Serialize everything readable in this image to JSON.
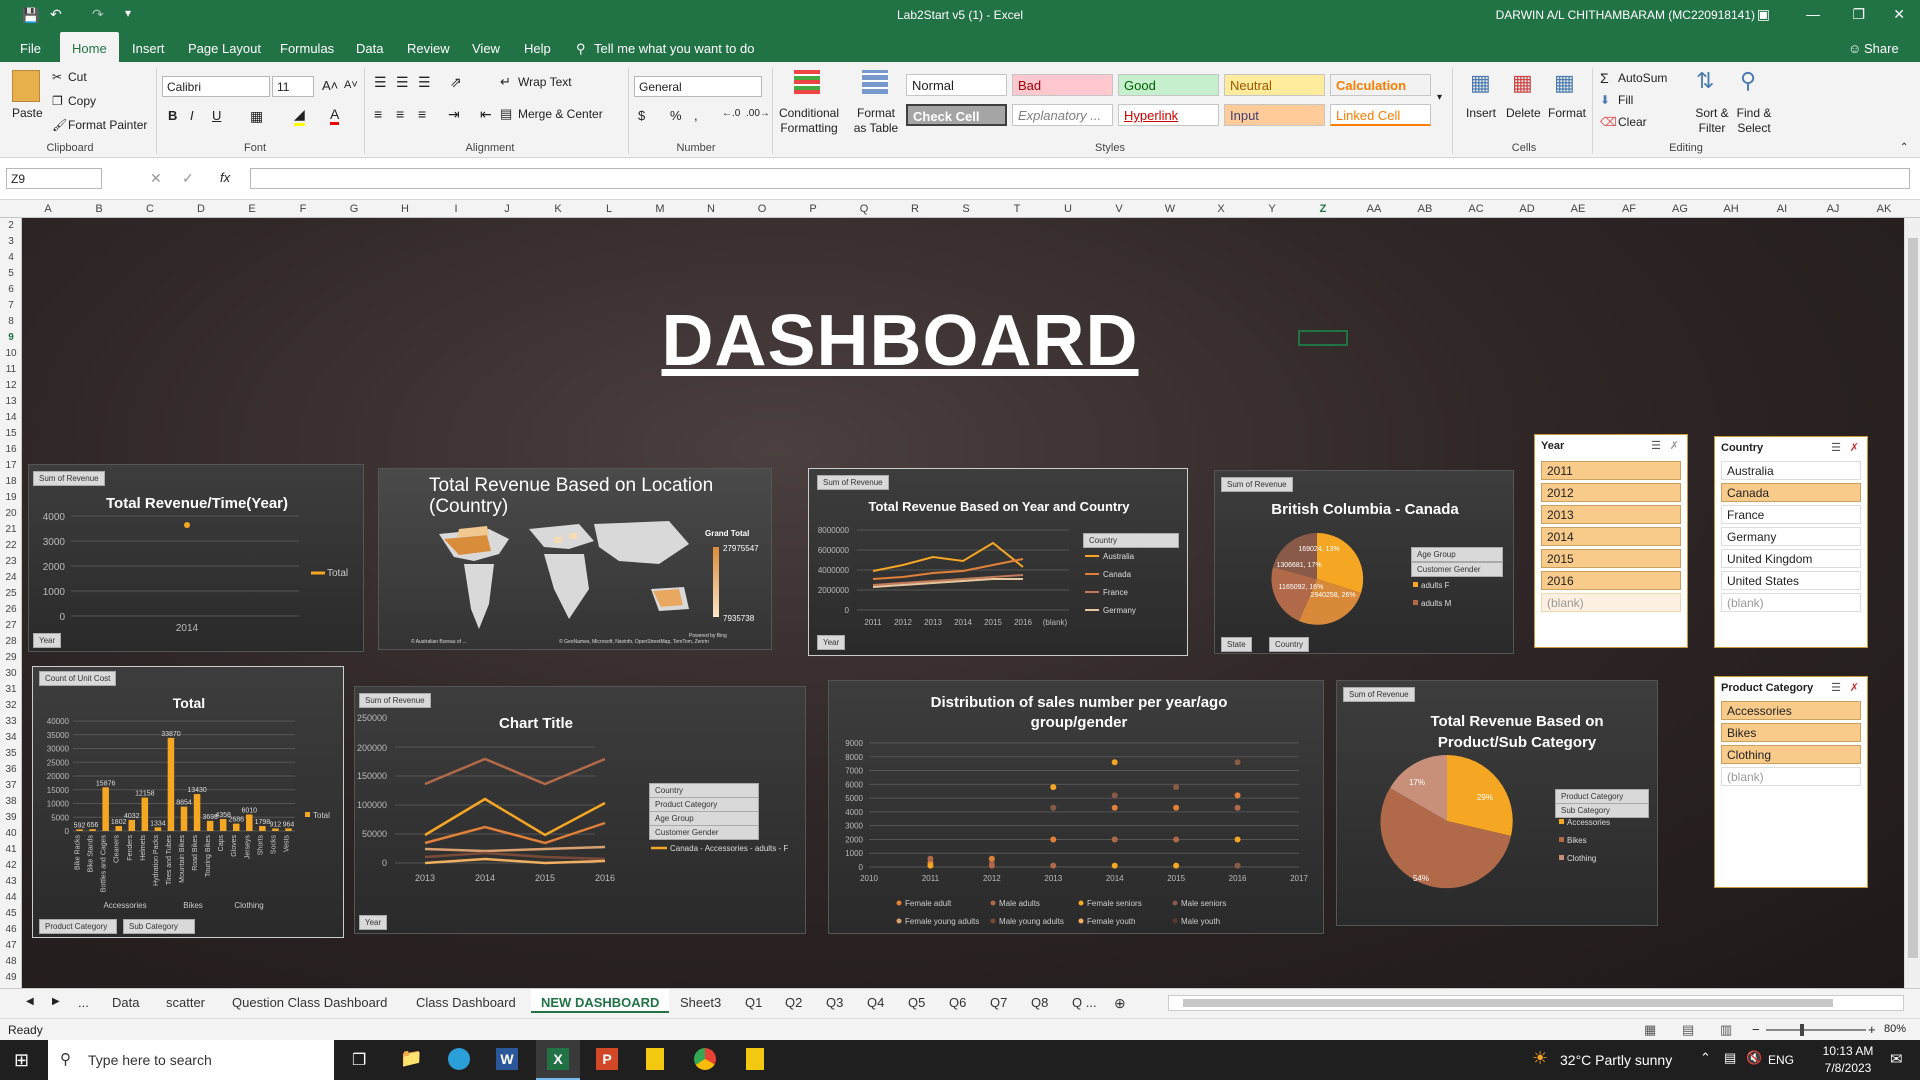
{
  "window": {
    "title": "Lab2Start v5 (1)  -  Excel",
    "user": "DARWIN A/L CHITHAMBARAM (MC220918141)"
  },
  "menu": [
    "File",
    "Home",
    "Insert",
    "Page Layout",
    "Formulas",
    "Data",
    "Review",
    "View",
    "Help"
  ],
  "tell_me": "Tell me what you want to do",
  "share": "Share",
  "ribbon": {
    "clipboard": {
      "paste": "Paste",
      "cut": "Cut",
      "copy": "Copy",
      "format_painter": "Format Painter",
      "label": "Clipboard"
    },
    "font": {
      "name": "Calibri",
      "size": "11",
      "label": "Font"
    },
    "alignment": {
      "wrap": "Wrap Text",
      "merge": "Merge & Center",
      "label": "Alignment"
    },
    "number": {
      "format": "General",
      "label": "Number"
    },
    "styles": {
      "cond": "Conditional Formatting",
      "table": "Format as Table",
      "label": "Styles",
      "cells": [
        "Normal",
        "Bad",
        "Good",
        "Neutral",
        "Calculation",
        "Check Cell",
        "Explanatory ...",
        "Hyperlink",
        "Input",
        "Linked Cell"
      ]
    },
    "cells": {
      "insert": "Insert",
      "delete": "Delete",
      "format": "Format",
      "label": "Cells"
    },
    "editing": {
      "autosum": "AutoSum",
      "fill": "Fill",
      "clear": "Clear",
      "sort": "Sort & Filter",
      "find": "Find & Select",
      "label": "Editing"
    }
  },
  "name_box": "Z9",
  "columns": [
    "A",
    "B",
    "C",
    "D",
    "E",
    "F",
    "G",
    "H",
    "I",
    "J",
    "K",
    "L",
    "M",
    "N",
    "O",
    "P",
    "Q",
    "R",
    "S",
    "T",
    "U",
    "V",
    "W",
    "X",
    "Y",
    "Z",
    "AA",
    "AB",
    "AC",
    "AD",
    "AE",
    "AF",
    "AG",
    "AH",
    "AI",
    "AJ",
    "AK"
  ],
  "rows": [
    "2",
    "3",
    "4",
    "5",
    "6",
    "7",
    "8",
    "9",
    "10",
    "11",
    "12",
    "13",
    "14",
    "15",
    "16",
    "17",
    "18",
    "19",
    "20",
    "21",
    "22",
    "23",
    "24",
    "25",
    "26",
    "27",
    "28",
    "29",
    "30",
    "31",
    "32",
    "33",
    "34",
    "35",
    "36",
    "37",
    "38",
    "39",
    "40",
    "41",
    "42",
    "43",
    "44",
    "45",
    "46",
    "47",
    "48",
    "49"
  ],
  "dashboard_title": "DASHBOARD",
  "charts": {
    "c1": {
      "pill": "Sum of Revenue",
      "title": "Total Revenue/Time(Year)",
      "yticks": [
        "4000",
        "3000",
        "2000",
        "1000",
        "0"
      ],
      "x": "2014",
      "legend": "Total",
      "filter": "Year"
    },
    "c2": {
      "title": "Total  Revenue Based on Location (Country)",
      "grand": "Grand Total",
      "max": "27975547",
      "min": "7935738",
      "credit1": "© Australian Bureau of ...",
      "credit2": "Powered by Bing",
      "credit3": "© GeoNames, Microsoft, Navinfo, OpenStreetMap, TomTom, Zenrin"
    },
    "c3": {
      "pill": "Sum of Revenue",
      "title": "Total Revenue Based on Year  and Country",
      "yticks": [
        "8000000",
        "6000000",
        "4000000",
        "2000000",
        "0"
      ],
      "xticks": [
        "2011",
        "2012",
        "2013",
        "2014",
        "2015",
        "2016",
        "(blank)"
      ],
      "legend_head": "Country",
      "legend": [
        "Australia",
        "Canada",
        "France",
        "Germany"
      ],
      "filter": "Year"
    },
    "c4": {
      "pill": "Sum of Revenue",
      "title": "British Columbia - Canada",
      "f1": "Age Group",
      "f2": "Customer Gender",
      "legend": [
        "adults F",
        "adults M"
      ],
      "filters": [
        "State",
        "Country"
      ],
      "labels": [
        "169024, 13%",
        "1306681, 17%",
        "2940258, 26%",
        "1165092, 16%"
      ]
    },
    "c5": {
      "pill": "Count of Unit Cost",
      "title": "Total",
      "yticks": [
        "40000",
        "35000",
        "30000",
        "25000",
        "20000",
        "15000",
        "10000",
        "5000",
        "0"
      ],
      "legend": "Total",
      "cats": [
        "Bike Racks",
        "Bike Stands",
        "Bottles and Cages",
        "Cleaners",
        "Fenders",
        "Helmets",
        "Hydration Packs",
        "Tires and Tubes",
        "Mountain Bikes",
        "Road Bikes",
        "Touring Bikes",
        "Caps",
        "Gloves",
        "Jerseys",
        "Shorts",
        "Socks",
        "Vests"
      ],
      "values": [
        592,
        656,
        15876,
        1802,
        4032,
        12158,
        1334,
        33870,
        8854,
        13430,
        3698,
        4358,
        2686,
        6010,
        1798,
        912,
        964
      ],
      "groups": [
        "Accessories",
        "Bikes",
        "Clothing"
      ],
      "filters": [
        "Product Category",
        "Sub Category"
      ]
    },
    "c6": {
      "pill": "Sum of Revenue",
      "title": "Chart Title",
      "yticks": [
        "250000",
        "200000",
        "150000",
        "100000",
        "50000",
        "0"
      ],
      "xticks": [
        "2013",
        "2014",
        "2015",
        "2016"
      ],
      "filters": [
        "Country",
        "Product Category",
        "Age Group",
        "Customer Gender"
      ],
      "legend": "Canada - Accessories - adults - F",
      "filter": "Year"
    },
    "c7": {
      "title": "Distribution of sales number per year/ago group/gender",
      "yticks": [
        "9000",
        "8000",
        "7000",
        "6000",
        "5000",
        "4000",
        "3000",
        "2000",
        "1000",
        "0"
      ],
      "xticks": [
        "2010",
        "2011",
        "2012",
        "2013",
        "2014",
        "2015",
        "2016",
        "2017"
      ],
      "legend": [
        "Female adult",
        "Male adults",
        "Female seniors",
        "Male seniors",
        "Female young adults",
        "Male young adults",
        "Female youth",
        "Male youth"
      ]
    },
    "c8": {
      "pill": "Sum of Revenue",
      "title": "Total Revenue Based on Product/Sub Category",
      "f1": "Product Category",
      "f2": "Sub Category",
      "legend": [
        "Accessories",
        "Bikes",
        "Clothing"
      ],
      "labels": [
        "29%",
        "54%",
        "17%"
      ]
    }
  },
  "slicers": {
    "year": {
      "title": "Year",
      "items": [
        "2011",
        "2012",
        "2013",
        "2014",
        "2015",
        "2016"
      ],
      "blank": "(blank)"
    },
    "country": {
      "title": "Country",
      "items": [
        "Australia",
        "Canada",
        "France",
        "Germany",
        "United Kingdom",
        "United States"
      ],
      "blank": "(blank)"
    },
    "product": {
      "title": "Product Category",
      "items": [
        "Accessories",
        "Bikes",
        "Clothing"
      ],
      "blank": "(blank)"
    }
  },
  "tabs": [
    "...",
    "Data",
    "scatter",
    "Question Class Dashboard",
    "Class Dashboard",
    "NEW DASHBOARD",
    "Sheet3",
    "Q1",
    "Q2",
    "Q3",
    "Q4",
    "Q5",
    "Q6",
    "Q7",
    "Q8",
    "Q ..."
  ],
  "status": {
    "ready": "Ready",
    "zoom": "80%"
  },
  "taskbar": {
    "search": "Type here to search",
    "weather": "32°C  Partly sunny",
    "lang": "ENG",
    "time": "10:13 AM",
    "date": "7/8/2023"
  }
}
